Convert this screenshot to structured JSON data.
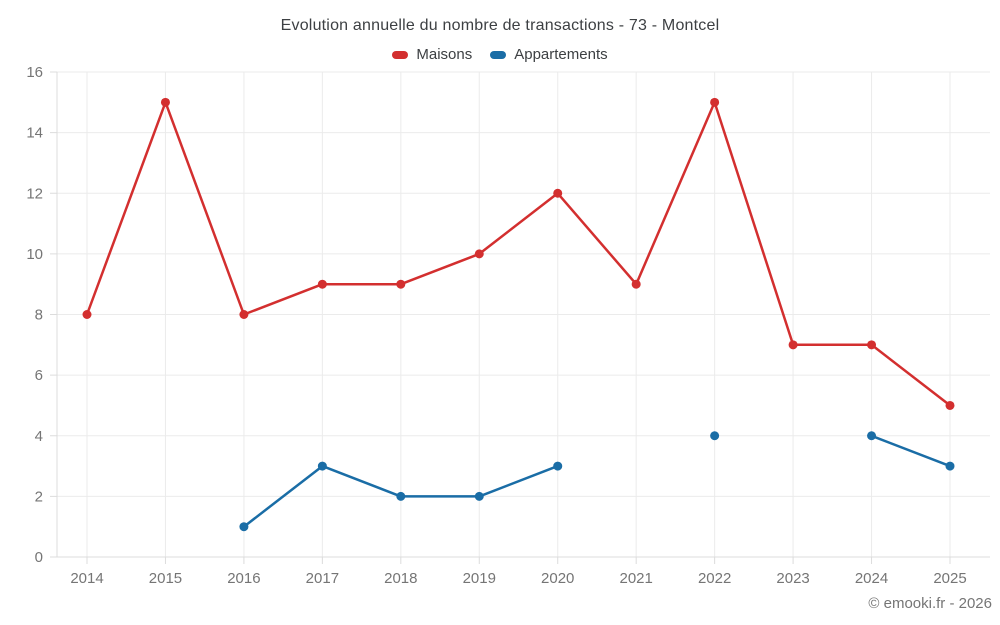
{
  "page": {
    "background": "#ffffff",
    "attribution": "© emooki.fr - 2026"
  },
  "chart_data": {
    "type": "line",
    "title": "Evolution annuelle du nombre de transactions - 73 - Montcel",
    "categories": [
      "2014",
      "2015",
      "2016",
      "2017",
      "2018",
      "2019",
      "2020",
      "2021",
      "2022",
      "2023",
      "2024",
      "2025"
    ],
    "series": [
      {
        "name": "Maisons",
        "color": "#d32f2f",
        "values": [
          8,
          15,
          8,
          9,
          9,
          10,
          12,
          9,
          15,
          7,
          7,
          5
        ]
      },
      {
        "name": "Appartements",
        "color": "#1a6da6",
        "values": [
          null,
          null,
          1,
          3,
          2,
          2,
          3,
          null,
          4,
          null,
          4,
          3
        ]
      }
    ],
    "xlabel": "",
    "ylabel": "",
    "ylim": [
      0,
      16
    ],
    "ytick_step": 2,
    "grid": true,
    "legend_position": "top",
    "colors": {
      "grid_line": "#ebebeb",
      "axis_line": "#dcdcdc",
      "tick_text": "#757575",
      "title_text": "#3d4043"
    }
  }
}
